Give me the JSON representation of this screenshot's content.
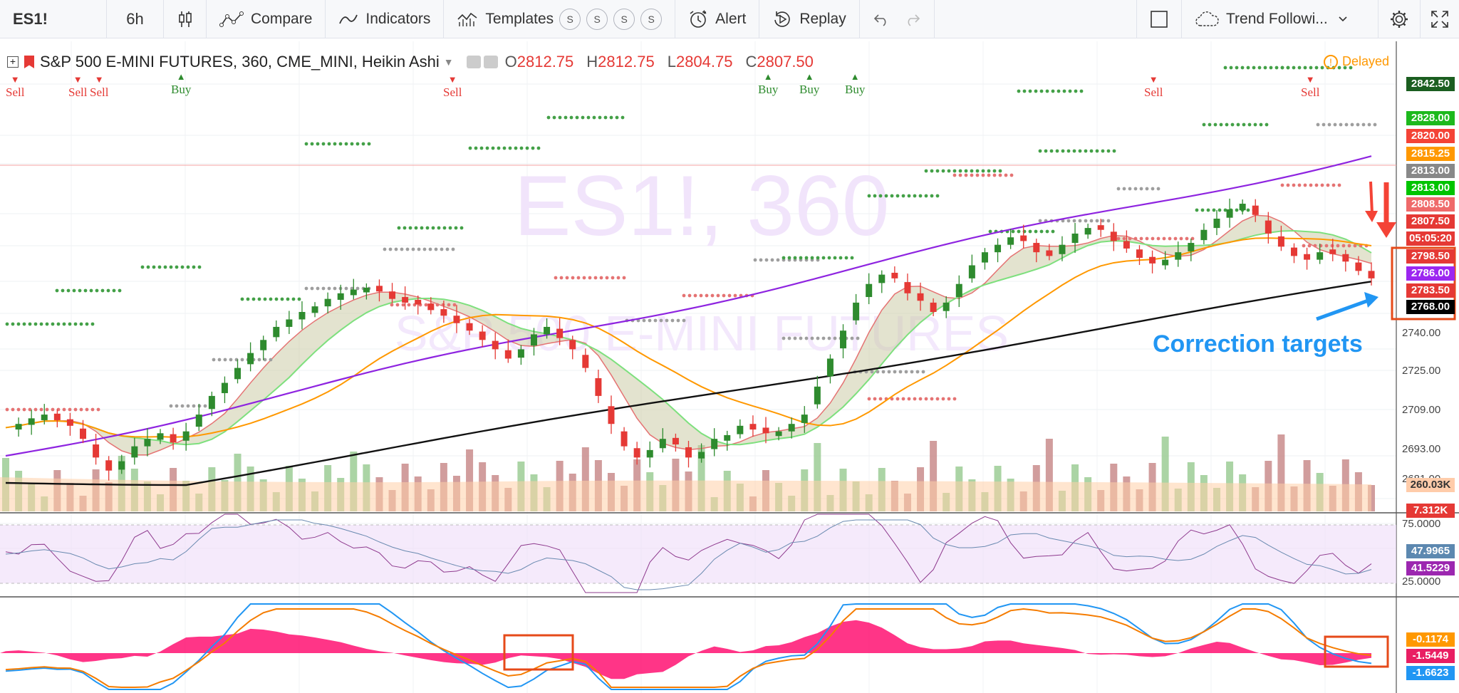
{
  "toolbar": {
    "symbol": "ES1!",
    "interval": "6h",
    "compare": "Compare",
    "indicators": "Indicators",
    "templates": "Templates",
    "template_badges": [
      "S",
      "S",
      "S",
      "S"
    ],
    "alert": "Alert",
    "replay": "Replay",
    "layout_name": "Trend Followi..."
  },
  "legend": {
    "title": "S&P 500 E-MINI FUTURES, 360, CME_MINI, Heikin Ashi",
    "o_label": "O",
    "o_value": "2812.75",
    "h_label": "H",
    "h_value": "2812.75",
    "l_label": "L",
    "l_value": "2804.75",
    "c_label": "C",
    "c_value": "2807.50",
    "delayed": "Delayed"
  },
  "watermark": {
    "line1": "ES1!, 360",
    "line2": "S&P 500 E-MINI FUTURES"
  },
  "signals": [
    {
      "label": "Sell",
      "type": "sell"
    },
    {
      "label": "Sell",
      "type": "sell"
    },
    {
      "label": "Sell",
      "type": "sell"
    },
    {
      "label": "Buy",
      "type": "buy"
    },
    {
      "label": "Sell",
      "type": "sell"
    },
    {
      "label": "Buy",
      "type": "buy"
    },
    {
      "label": "Buy",
      "type": "buy"
    },
    {
      "label": "Buy",
      "type": "buy"
    },
    {
      "label": "Sell",
      "type": "sell"
    },
    {
      "label": "Sell",
      "type": "sell"
    }
  ],
  "price_axis": [
    "2740.00",
    "2725.00",
    "2709.00",
    "2693.00",
    "2681.00"
  ],
  "price_labels": [
    {
      "value": "2842.50",
      "bg": "#1b5e20"
    },
    {
      "value": "2828.00",
      "bg": "#1db91d"
    },
    {
      "value": "2820.00",
      "bg": "#f44336"
    },
    {
      "value": "2815.25",
      "bg": "#ff9800"
    },
    {
      "value": "2813.00",
      "bg": "#888888"
    },
    {
      "value": "2813.00",
      "bg": "#00c400"
    },
    {
      "value": "2808.50",
      "bg": "#ef6a6a"
    },
    {
      "value": "2807.50",
      "bg": "#e53935"
    },
    {
      "value": "05:05:20",
      "bg": "#e53935"
    },
    {
      "value": "2798.50",
      "bg": "#e53935"
    },
    {
      "value": "2786.00",
      "bg": "#9c27f0"
    },
    {
      "value": "2783.50",
      "bg": "#e53935"
    },
    {
      "value": "2768.00",
      "bg": "#000000"
    },
    {
      "value": "260.03K",
      "bg": "#ffccaa",
      "fg": "#333333"
    },
    {
      "value": "7.312K",
      "bg": "#e53935"
    }
  ],
  "rsi_axis": [
    "75.0000",
    "25.0000"
  ],
  "rsi_labels": [
    {
      "value": "47.9965",
      "bg": "#5c88b0"
    },
    {
      "value": "41.5229",
      "bg": "#9c27b0"
    }
  ],
  "macd_labels": [
    {
      "value": "-0.1174",
      "bg": "#ff9800"
    },
    {
      "value": "-1.5449",
      "bg": "#e91e63"
    },
    {
      "value": "-1.6623",
      "bg": "#2196f3"
    }
  ],
  "annotation": "Correction targets",
  "colors": {
    "up": "#2e8b2e",
    "down": "#e53935",
    "ma_orange": "#ff9800",
    "ma_purple": "#8e24e0",
    "ma_black": "#111111",
    "accent": "#2196f3"
  }
}
